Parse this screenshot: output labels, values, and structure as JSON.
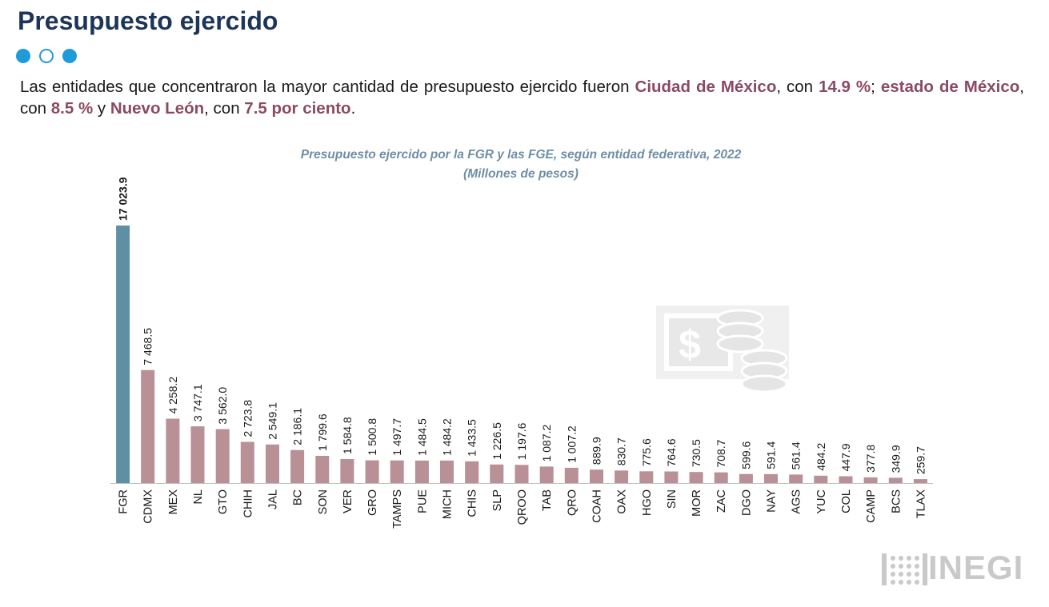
{
  "header": {
    "title": "Presupuesto ejercido",
    "pager": [
      "active",
      "inactive",
      "active"
    ]
  },
  "summary": {
    "t1": "Las entidades que concentraron la mayor cantidad de presupuesto ejercido fueron ",
    "h1": "Ciudad de México",
    "t2": ", con ",
    "h2": "14.9 %",
    "t3": "; ",
    "h3": "estado de México",
    "t4": ", con ",
    "h4": "8.5 %",
    "t5": " y ",
    "h5": "Nuevo León",
    "t6": ", con ",
    "h6": "7.5 por ciento",
    "t7": "."
  },
  "chart_data": {
    "type": "bar",
    "title": "Presupuesto ejercido por la FGR y las FGE, según entidad federativa, 2022",
    "subtitle": "(Millones de pesos)",
    "categories": [
      "FGR",
      "CDMX",
      "MEX",
      "NL",
      "GTO",
      "CHIH",
      "JAL",
      "BC",
      "SON",
      "VER",
      "GRO",
      "TAMPS",
      "PUE",
      "MICH",
      "CHIS",
      "SLP",
      "QROO",
      "TAB",
      "QRO",
      "COAH",
      "OAX",
      "HGO",
      "SIN",
      "MOR",
      "ZAC",
      "DGO",
      "NAY",
      "AGS",
      "YUC",
      "COL",
      "CAMP",
      "BCS",
      "TLAX"
    ],
    "values": [
      17023.9,
      7468.5,
      4258.2,
      3747.1,
      3562.0,
      2723.8,
      2549.1,
      2186.1,
      1799.6,
      1584.8,
      1500.8,
      1497.7,
      1484.5,
      1484.2,
      1433.5,
      1226.5,
      1197.6,
      1087.2,
      1007.2,
      889.9,
      830.7,
      775.6,
      764.6,
      730.5,
      708.7,
      599.6,
      591.4,
      561.4,
      484.2,
      447.9,
      377.8,
      349.9,
      259.7
    ],
    "value_labels": [
      "17 023.9",
      "7 468.5",
      "4 258.2",
      "3 747.1",
      "3 562.0",
      "2 723.8",
      "2 549.1",
      "2 186.1",
      "1 799.6",
      "1 584.8",
      "1 500.8",
      "1 497.7",
      "1 484.5",
      "1 484.2",
      "1 433.5",
      "1 226.5",
      "1 197.6",
      "1 087.2",
      "1 007.2",
      "889.9",
      "830.7",
      "775.6",
      "764.6",
      "730.5",
      "708.7",
      "599.6",
      "591.4",
      "561.4",
      "484.2",
      "447.9",
      "377.8",
      "349.9",
      "259.7"
    ],
    "highlight_index": 0,
    "colors": {
      "highlight": "#5f8fa3",
      "bar": "#b89096",
      "title": "#6e8fa3",
      "axis": "#bfbfbf"
    },
    "ylim": [
      0,
      17023.9
    ],
    "grid": false,
    "legend": "none"
  },
  "branding": {
    "logo_text": "INEGI",
    "watermark": "money-icon"
  }
}
